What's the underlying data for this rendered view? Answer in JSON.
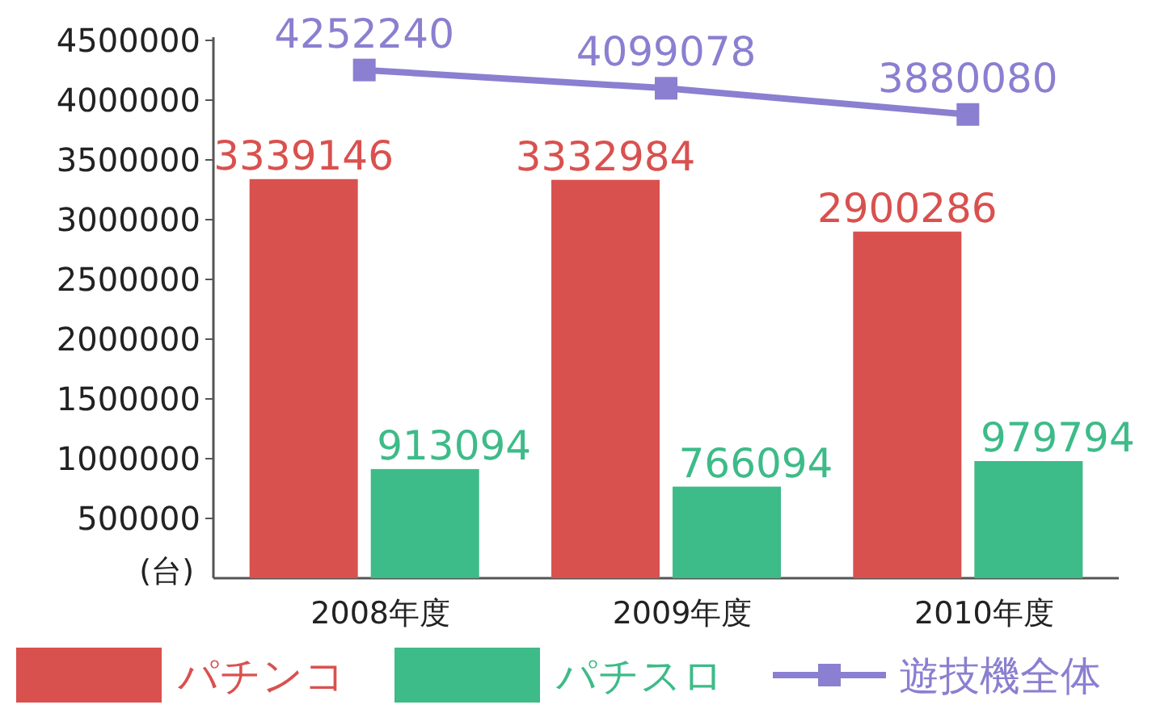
{
  "chart_data": {
    "type": "bar",
    "ylabel": "(台)",
    "categories": [
      "2008年度",
      "2009年度",
      "2010年度"
    ],
    "series": [
      {
        "name": "パチンコ",
        "color": "#d9514f",
        "values": [
          3339146,
          3332984,
          2900286
        ]
      },
      {
        "name": "パチスロ",
        "color": "#3dbb88",
        "values": [
          913094,
          766094,
          979794
        ]
      },
      {
        "name": "遊技機全体",
        "type": "line",
        "color": "#8a7fd0",
        "marker": "square",
        "values": [
          4252240,
          4099078,
          3880080
        ]
      }
    ],
    "ylim": [
      0,
      4500000
    ],
    "yticks": [
      500000,
      1000000,
      1500000,
      2000000,
      2500000,
      3000000,
      3500000,
      4000000,
      4500000
    ],
    "data_labels": true,
    "legend": "bottom"
  }
}
